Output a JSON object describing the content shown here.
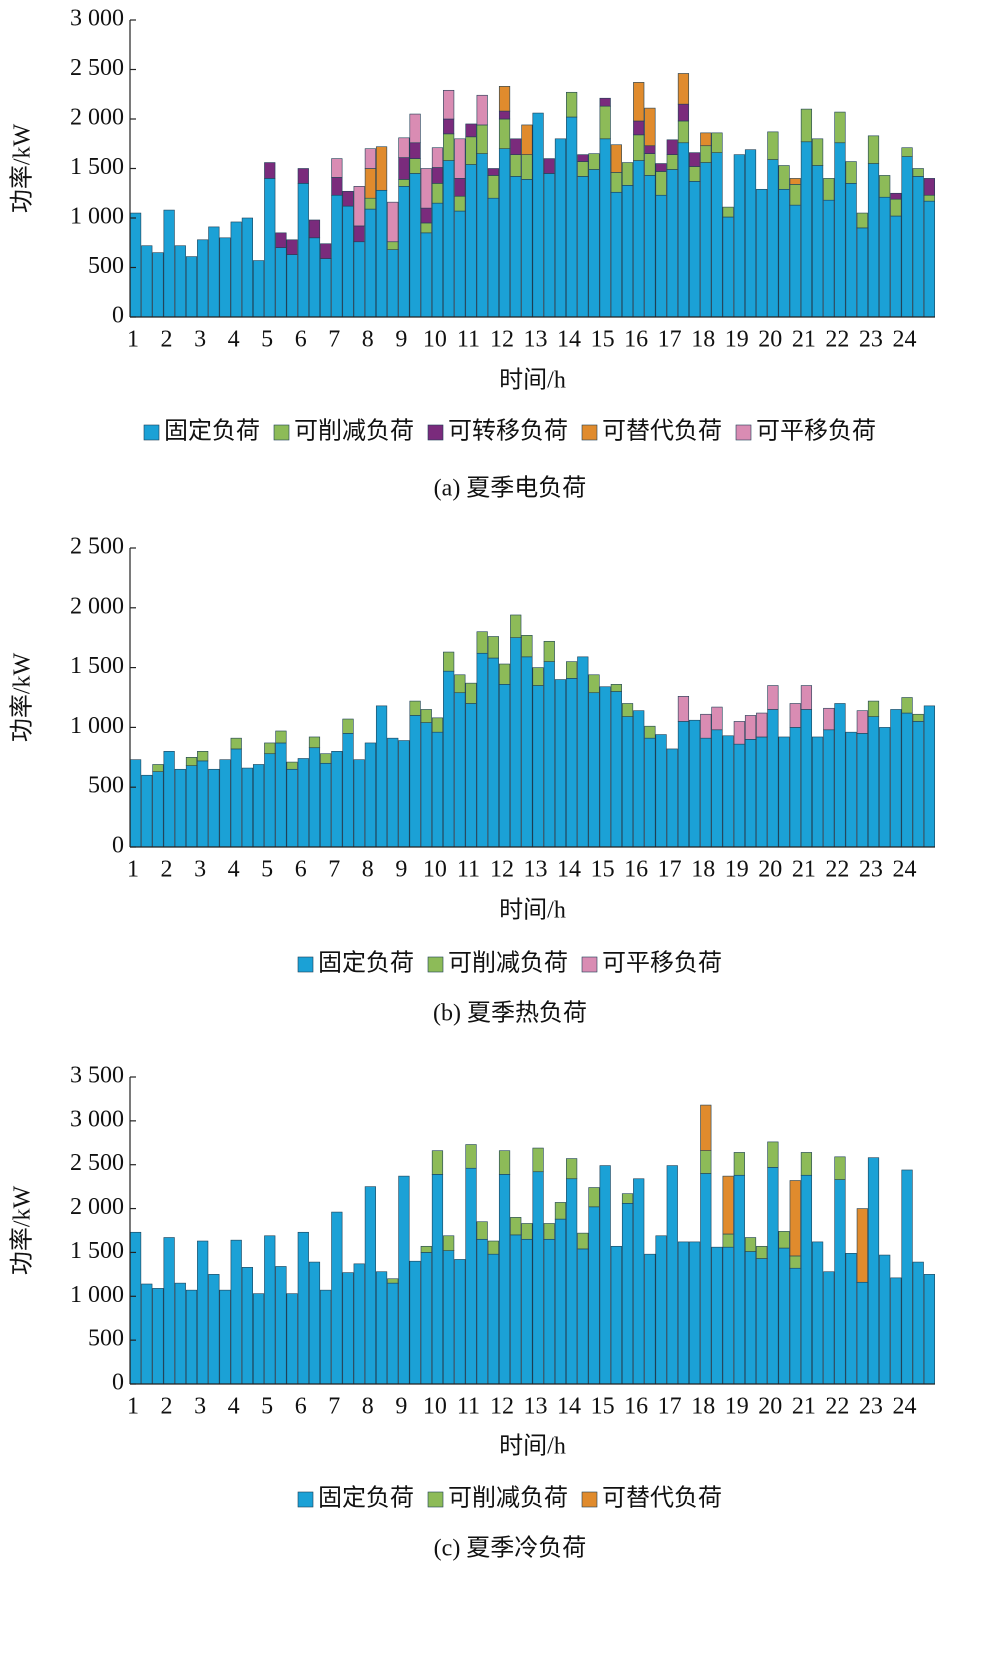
{
  "chart_data": [
    {
      "type": "bar",
      "stacked": true,
      "title": "(a) 夏季电负荷",
      "xlabel": "时间/h",
      "ylabel": "功率/kW",
      "categories": [
        "1",
        null,
        null,
        "2",
        null,
        null,
        "3",
        null,
        null,
        "4",
        null,
        null,
        "5",
        null,
        null,
        "6",
        null,
        null,
        "7",
        null,
        null,
        "8",
        null,
        null,
        "9",
        null,
        null,
        "10",
        null,
        null,
        "11",
        null,
        null,
        "12",
        null,
        null,
        "13",
        null,
        null,
        "14",
        null,
        null,
        "15",
        null,
        null,
        "16",
        null,
        null,
        "17",
        null,
        null,
        "18",
        null,
        null,
        "19",
        null,
        null,
        "20",
        null,
        null,
        "21",
        null,
        null,
        "22",
        null,
        null,
        "23",
        null,
        null,
        "24",
        null,
        null
      ],
      "ylim": [
        0,
        3000
      ],
      "yticks": [
        0,
        500,
        {
          "value": 1000,
          "label": "1 000"
        },
        {
          "value": 1500,
          "label": "1 500"
        },
        {
          "value": 2000,
          "label": "2 000"
        },
        {
          "value": 2500,
          "label": "2 500"
        },
        {
          "value": 3000,
          "label": "3 000"
        }
      ],
      "series": [
        {
          "name": "固定负荷",
          "color": "#1ba1d6",
          "values": [
            1050,
            720,
            650,
            1080,
            720,
            610,
            780,
            910,
            800,
            960,
            1000,
            570,
            1400,
            700,
            630,
            1350,
            800,
            590,
            1230,
            1120,
            760,
            1090,
            1280,
            680,
            1320,
            1450,
            850,
            1150,
            1580,
            1070,
            1540,
            1650,
            1200,
            1700,
            1420,
            1390,
            2060,
            1450,
            1800,
            2020,
            1420,
            1490,
            1800,
            1260,
            1330,
            1580,
            1430,
            1230,
            1490,
            1760,
            1370,
            1560,
            1660,
            1010,
            1640,
            1690,
            1290,
            1590,
            1290,
            1130,
            1770,
            1530,
            1180,
            1760,
            1350,
            900,
            1550,
            1210,
            1020,
            1620,
            1420,
            1170
          ]
        },
        {
          "name": "可削减负荷",
          "color": "#8dbb58",
          "values": [
            0,
            0,
            0,
            0,
            0,
            0,
            0,
            0,
            0,
            0,
            0,
            0,
            0,
            0,
            0,
            0,
            0,
            0,
            0,
            0,
            0,
            110,
            0,
            80,
            70,
            150,
            100,
            200,
            270,
            150,
            280,
            290,
            230,
            300,
            220,
            250,
            0,
            0,
            0,
            250,
            150,
            160,
            330,
            200,
            230,
            260,
            220,
            240,
            150,
            220,
            150,
            170,
            200,
            100,
            0,
            0,
            0,
            280,
            240,
            210,
            330,
            270,
            220,
            310,
            220,
            150,
            280,
            220,
            170,
            90,
            80,
            60
          ]
        },
        {
          "name": "可转移负荷",
          "color": "#7a2b7c",
          "values": [
            0,
            0,
            0,
            0,
            0,
            0,
            0,
            0,
            0,
            0,
            0,
            0,
            160,
            150,
            150,
            150,
            180,
            150,
            180,
            150,
            160,
            0,
            0,
            0,
            220,
            160,
            150,
            160,
            150,
            180,
            130,
            0,
            70,
            80,
            160,
            0,
            0,
            150,
            0,
            0,
            70,
            0,
            80,
            0,
            0,
            140,
            80,
            80,
            150,
            170,
            140,
            0,
            0,
            0,
            0,
            0,
            0,
            0,
            0,
            0,
            0,
            0,
            0,
            0,
            0,
            0,
            0,
            0,
            60,
            0,
            0,
            170
          ]
        },
        {
          "name": "可替代负荷",
          "color": "#e08b2d",
          "values": [
            0,
            0,
            0,
            0,
            0,
            0,
            0,
            0,
            0,
            0,
            0,
            0,
            0,
            0,
            0,
            0,
            0,
            0,
            0,
            0,
            0,
            300,
            440,
            0,
            0,
            0,
            0,
            0,
            0,
            0,
            0,
            0,
            0,
            250,
            0,
            300,
            0,
            0,
            0,
            0,
            0,
            0,
            0,
            280,
            0,
            390,
            380,
            0,
            0,
            310,
            0,
            130,
            0,
            0,
            0,
            0,
            0,
            0,
            0,
            60,
            0,
            0,
            0,
            0,
            0,
            0,
            0,
            0,
            0,
            0,
            0,
            0
          ]
        },
        {
          "name": "可平移负荷",
          "color": "#d98cb3",
          "values": [
            0,
            0,
            0,
            0,
            0,
            0,
            0,
            0,
            0,
            0,
            0,
            0,
            0,
            0,
            0,
            0,
            0,
            0,
            190,
            0,
            400,
            200,
            0,
            400,
            200,
            290,
            400,
            200,
            290,
            400,
            0,
            300,
            0,
            0,
            0,
            0,
            0,
            0,
            0,
            0,
            0,
            0,
            0,
            0,
            0,
            0,
            0,
            0,
            0,
            0,
            0,
            0,
            0,
            0,
            0,
            0,
            0,
            0,
            0,
            0,
            0,
            0,
            0,
            0,
            0,
            0,
            0,
            0,
            0,
            0,
            0,
            0
          ]
        }
      ]
    },
    {
      "type": "bar",
      "stacked": true,
      "title": "(b) 夏季热负荷",
      "xlabel": "时间/h",
      "ylabel": "功率/kW",
      "categories": [
        "1",
        null,
        null,
        "2",
        null,
        null,
        "3",
        null,
        null,
        "4",
        null,
        null,
        "5",
        null,
        null,
        "6",
        null,
        null,
        "7",
        null,
        null,
        "8",
        null,
        null,
        "9",
        null,
        null,
        "10",
        null,
        null,
        "11",
        null,
        null,
        "12",
        null,
        null,
        "13",
        null,
        null,
        "14",
        null,
        null,
        "15",
        null,
        null,
        "16",
        null,
        null,
        "17",
        null,
        null,
        "18",
        null,
        null,
        "19",
        null,
        null,
        "20",
        null,
        null,
        "21",
        null,
        null,
        "22",
        null,
        null,
        "23",
        null,
        null,
        "24",
        null,
        null
      ],
      "ylim": [
        0,
        2500
      ],
      "yticks": [
        0,
        500,
        {
          "value": 1000,
          "label": "1 000"
        },
        {
          "value": 1500,
          "label": "1 500"
        },
        {
          "value": 2000,
          "label": "2 000"
        },
        {
          "value": 2500,
          "label": "2 500"
        }
      ],
      "series": [
        {
          "name": "固定负荷",
          "color": "#1ba1d6",
          "values": [
            730,
            600,
            630,
            800,
            650,
            680,
            720,
            650,
            730,
            820,
            660,
            690,
            780,
            870,
            650,
            740,
            830,
            700,
            800,
            950,
            730,
            870,
            1180,
            910,
            890,
            1100,
            1040,
            960,
            1470,
            1290,
            1200,
            1620,
            1580,
            1360,
            1750,
            1590,
            1350,
            1550,
            1400,
            1410,
            1590,
            1290,
            1340,
            1300,
            1090,
            1140,
            910,
            940,
            820,
            1050,
            1060,
            910,
            980,
            930,
            860,
            900,
            920,
            1150,
            920,
            1000,
            1150,
            920,
            980,
            1200,
            960,
            950,
            1090,
            1000,
            1150,
            1120,
            1050,
            1180
          ]
        },
        {
          "name": "可削减负荷",
          "color": "#8dbb58",
          "values": [
            0,
            0,
            60,
            0,
            0,
            70,
            80,
            0,
            0,
            90,
            0,
            0,
            90,
            100,
            60,
            0,
            90,
            80,
            0,
            120,
            0,
            0,
            0,
            0,
            0,
            120,
            110,
            120,
            160,
            150,
            170,
            180,
            180,
            170,
            190,
            180,
            150,
            170,
            0,
            140,
            0,
            150,
            0,
            60,
            110,
            0,
            100,
            0,
            0,
            0,
            0,
            0,
            0,
            0,
            0,
            0,
            0,
            0,
            0,
            0,
            0,
            0,
            0,
            0,
            0,
            0,
            130,
            0,
            0,
            130,
            60,
            0
          ]
        },
        {
          "name": "可平移负荷",
          "color": "#d98cb3",
          "values": [
            0,
            0,
            0,
            0,
            0,
            0,
            0,
            0,
            0,
            0,
            0,
            0,
            0,
            0,
            0,
            0,
            0,
            0,
            0,
            0,
            0,
            0,
            0,
            0,
            0,
            0,
            0,
            0,
            0,
            0,
            0,
            0,
            0,
            0,
            0,
            0,
            0,
            0,
            0,
            0,
            0,
            0,
            0,
            0,
            0,
            0,
            0,
            0,
            0,
            210,
            0,
            200,
            190,
            0,
            190,
            200,
            200,
            200,
            0,
            200,
            200,
            0,
            180,
            0,
            0,
            190,
            0,
            0,
            0,
            0,
            0,
            0
          ]
        }
      ]
    },
    {
      "type": "bar",
      "stacked": true,
      "title": "(c) 夏季冷负荷",
      "xlabel": "时间/h",
      "ylabel": "功率/kW",
      "categories": [
        "1",
        null,
        null,
        "2",
        null,
        null,
        "3",
        null,
        null,
        "4",
        null,
        null,
        "5",
        null,
        null,
        "6",
        null,
        null,
        "7",
        null,
        null,
        "8",
        null,
        null,
        "9",
        null,
        null,
        "10",
        null,
        null,
        "11",
        null,
        null,
        "12",
        null,
        null,
        "13",
        null,
        null,
        "14",
        null,
        null,
        "15",
        null,
        null,
        "16",
        null,
        null,
        "17",
        null,
        null,
        "18",
        null,
        null,
        "19",
        null,
        null,
        "20",
        null,
        null,
        "21",
        null,
        null,
        "22",
        null,
        null,
        "23",
        null,
        null,
        "24",
        null,
        null
      ],
      "ylim": [
        0,
        3500
      ],
      "yticks": [
        0,
        500,
        {
          "value": 1000,
          "label": "1 000"
        },
        {
          "value": 1500,
          "label": "1 500"
        },
        {
          "value": 2000,
          "label": "2 000"
        },
        {
          "value": 2500,
          "label": "2 500"
        },
        {
          "value": 3000,
          "label": "3 000"
        },
        {
          "value": 3500,
          "label": "3 500"
        }
      ],
      "series": [
        {
          "name": "固定负荷",
          "color": "#1ba1d6",
          "values": [
            1730,
            1140,
            1090,
            1670,
            1150,
            1070,
            1630,
            1250,
            1070,
            1640,
            1330,
            1030,
            1690,
            1340,
            1030,
            1730,
            1390,
            1070,
            1960,
            1270,
            1370,
            2250,
            1280,
            1150,
            2370,
            1400,
            1500,
            2390,
            1520,
            1420,
            2460,
            1650,
            1480,
            2390,
            1700,
            1650,
            2420,
            1650,
            1880,
            2340,
            1540,
            2020,
            2490,
            1570,
            2060,
            2340,
            1480,
            1690,
            2490,
            1620,
            1620,
            2400,
            1560,
            1560,
            2380,
            1510,
            1430,
            2470,
            1550,
            1320,
            2380,
            1620,
            1280,
            2330,
            1490,
            1160,
            2580,
            1470,
            1210,
            2440,
            1390,
            1250
          ]
        },
        {
          "name": "可削减负荷",
          "color": "#8dbb58",
          "values": [
            0,
            0,
            0,
            0,
            0,
            0,
            0,
            0,
            0,
            0,
            0,
            0,
            0,
            0,
            0,
            0,
            0,
            0,
            0,
            0,
            0,
            0,
            0,
            50,
            0,
            0,
            70,
            270,
            170,
            0,
            270,
            200,
            150,
            270,
            200,
            180,
            270,
            180,
            190,
            230,
            180,
            220,
            0,
            0,
            110,
            0,
            0,
            0,
            0,
            0,
            0,
            260,
            0,
            150,
            260,
            160,
            140,
            290,
            190,
            140,
            260,
            0,
            0,
            260,
            0,
            0,
            0,
            0,
            0,
            0,
            0,
            0
          ]
        },
        {
          "name": "可替代负荷",
          "color": "#e08b2d",
          "values": [
            0,
            0,
            0,
            0,
            0,
            0,
            0,
            0,
            0,
            0,
            0,
            0,
            0,
            0,
            0,
            0,
            0,
            0,
            0,
            0,
            0,
            0,
            0,
            0,
            0,
            0,
            0,
            0,
            0,
            0,
            0,
            0,
            0,
            0,
            0,
            0,
            0,
            0,
            0,
            0,
            0,
            0,
            0,
            0,
            0,
            0,
            0,
            0,
            0,
            0,
            0,
            520,
            0,
            660,
            0,
            0,
            0,
            0,
            0,
            860,
            0,
            0,
            0,
            0,
            0,
            840,
            0,
            0,
            0,
            0,
            0,
            0
          ]
        }
      ]
    }
  ]
}
